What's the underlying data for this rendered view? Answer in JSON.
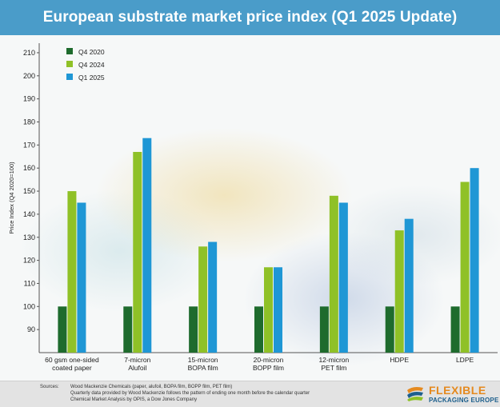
{
  "title": "European substrate market price index (Q1 2025 Update)",
  "chart_data": {
    "type": "bar",
    "ylabel": "Price Index (Q4 2020=100)",
    "ylim": [
      80,
      215
    ],
    "yticks": [
      90,
      100,
      110,
      120,
      130,
      140,
      150,
      160,
      170,
      180,
      190,
      200,
      210
    ],
    "categories": [
      [
        "60 gsm one-sided",
        "coated paper"
      ],
      [
        "7-micron",
        "Alufoil"
      ],
      [
        "15-micron",
        "BOPA film"
      ],
      [
        "20-micron",
        "BOPP film"
      ],
      [
        "12-micron",
        "PET film"
      ],
      [
        "HDPE"
      ],
      [
        "LDPE"
      ]
    ],
    "series": [
      {
        "name": "Q4 2020",
        "color": "#1e6b2d",
        "values": [
          100,
          100,
          100,
          100,
          100,
          100,
          100
        ]
      },
      {
        "name": "Q4 2024",
        "color": "#8fc127",
        "values": [
          150,
          167,
          126,
          117,
          148,
          133,
          154
        ]
      },
      {
        "name": "Q1 2025",
        "color": "#1f97d5",
        "values": [
          145,
          173,
          128,
          117,
          145,
          138,
          160
        ]
      }
    ],
    "legend": "top-left",
    "grid": false
  },
  "footer": {
    "sources_label": "Sources:",
    "lines": [
      "Wood Mackenzie Chemicals (paper, alufoil, BOPA film, BOPP film, PET film)",
      "Quarterly data provided by Wood Mackenzie follows the pattern of ending one month before the calendar quarter",
      "Chemical Market Analysis by OPIS, a Dow Jones Company"
    ]
  },
  "logo": {
    "line1": "FLEXIBLE",
    "line2": "PACKAGING EUROPE",
    "colors": [
      "#e58a1f",
      "#1d5f8c",
      "#8fc127"
    ]
  }
}
